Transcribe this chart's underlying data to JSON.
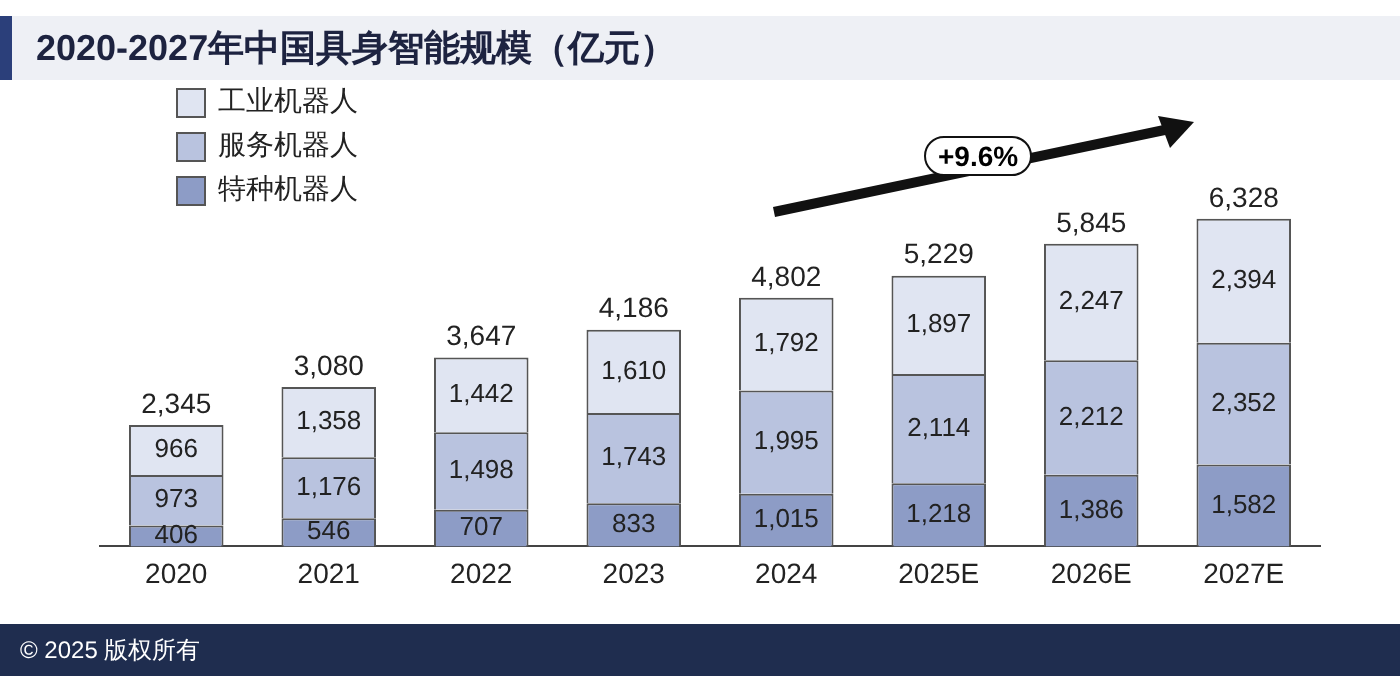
{
  "chart_data": {
    "type": "bar",
    "title": "2020-2027年中国具身智能规模（亿元）",
    "categories": [
      "2020",
      "2021",
      "2022",
      "2023",
      "2024",
      "2025E",
      "2026E",
      "2027E"
    ],
    "stacked": true,
    "tick_labels": "x",
    "grid": false,
    "legend": "top left",
    "series": [
      {
        "name": "特种机器人",
        "color": "#8d9cc6",
        "values": [
          406,
          546,
          707,
          833,
          1015,
          1218,
          1386,
          1582
        ],
        "value_labels": [
          "406",
          "546",
          "707",
          "833",
          "1,015",
          "1,218",
          "1,386",
          "1,582"
        ]
      },
      {
        "name": "服务机器人",
        "color": "#b9c3df",
        "values": [
          973,
          1176,
          1498,
          1743,
          1995,
          2114,
          2212,
          2352
        ],
        "value_labels": [
          "973",
          "1,176",
          "1,498",
          "1,743",
          "1,995",
          "2,114",
          "2,212",
          "2,352"
        ]
      },
      {
        "name": "工业机器人",
        "color": "#e0e5f2",
        "values": [
          966,
          1358,
          1442,
          1610,
          1792,
          1897,
          2247,
          2394
        ],
        "value_labels": [
          "966",
          "1,358",
          "1,442",
          "1,610",
          "1,792",
          "1,897",
          "2,247",
          "2,394"
        ]
      }
    ],
    "totals": [
      "2,345",
      "3,080",
      "3,647",
      "4,186",
      "4,802",
      "5,229",
      "5,845",
      "6,328"
    ],
    "annotations": [
      "+9.6%",
      "© 2025 版权所有"
    ]
  }
}
